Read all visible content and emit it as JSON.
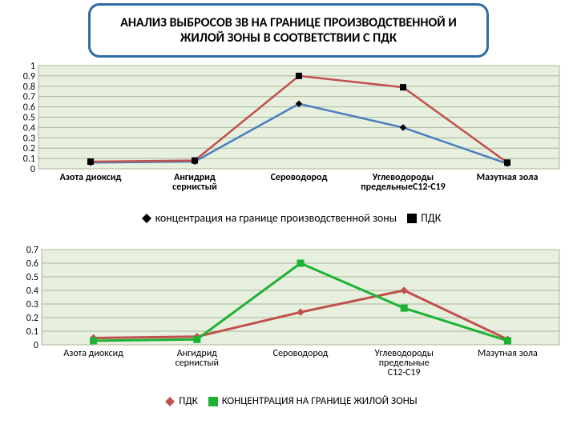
{
  "title": "АНАЛИЗ ВЫБРОСОВ ЗВ НА ГРАНИЦЕ ПРОИЗВОДСТВЕННОЙ И ЖИЛОЙ ЗОНЫ В СООТВЕТСТВИИ С ПДК",
  "title_border_color": "#2e6ca4",
  "title_bg_color": "#ffffff",
  "chart1": {
    "type": "line",
    "plot_bg": "#e7f0de",
    "gridline_color": "#a8b49b",
    "axis_label_fontsize": 12,
    "categories": [
      "Азота диоксид",
      "Ангидрид сернистый",
      "Сероводород",
      "Углеводороды предельныеС12-С19",
      "Мазутная зола"
    ],
    "ylim": [
      0,
      1.0
    ],
    "ytick_step": 0.1,
    "series": [
      {
        "name": "концентрация на границе производственной зоны",
        "values": [
          0.06,
          0.07,
          0.63,
          0.4,
          0.05
        ],
        "color": "#4a7fbd",
        "line_width": 2.5,
        "marker": "diamond",
        "marker_fill": "#000000",
        "marker_size": 7
      },
      {
        "name": "ПДК",
        "values": [
          0.07,
          0.08,
          0.9,
          0.79,
          0.06
        ],
        "color": "#c0504d",
        "line_width": 2.5,
        "marker": "square",
        "marker_fill": "#000000",
        "marker_size": 7
      }
    ],
    "legend_items": [
      {
        "marker": "diamond",
        "color": "#000000",
        "label": "концентрация на границе производственной зоны"
      },
      {
        "marker": "square",
        "color": "#000000",
        "label": "ПДК"
      }
    ],
    "legend_fontsize": 14
  },
  "chart2": {
    "type": "line",
    "plot_bg": "#e7f0de",
    "gridline_color": "#a8b49b",
    "axis_label_fontsize": 12,
    "categories": [
      "Азота диоксид",
      "Ангидрид сернистый",
      "Сероводород",
      "Углеводороды предельные С12-С19",
      "Мазутная зола"
    ],
    "ylim": [
      0,
      0.7
    ],
    "ytick_step": 0.1,
    "series": [
      {
        "name": "ПДК",
        "values": [
          0.05,
          0.06,
          0.24,
          0.4,
          0.04
        ],
        "color": "#c0504d",
        "line_width": 3,
        "marker": "diamond",
        "marker_fill": "#c0504d",
        "marker_size": 8
      },
      {
        "name": "КОНЦЕНТРАЦИЯ НА ГРАНИЦЕ ЖИЛОЙ ЗОНЫ",
        "values": [
          0.03,
          0.04,
          0.6,
          0.27,
          0.03
        ],
        "color": "#1db234",
        "line_width": 3,
        "marker": "square",
        "marker_fill": "#1db234",
        "marker_size": 8
      }
    ],
    "legend_items": [
      {
        "marker": "diamond",
        "color": "#c0504d",
        "label": "ПДК"
      },
      {
        "marker": "square",
        "color": "#1db234",
        "label": "КОНЦЕНТРАЦИЯ НА ГРАНИЦЕ ЖИЛОЙ ЗОНЫ"
      }
    ],
    "legend_fontsize": 13
  }
}
